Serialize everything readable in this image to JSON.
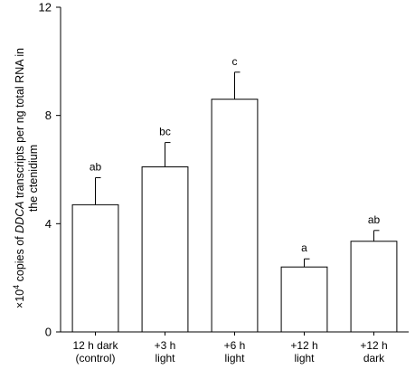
{
  "chart_data": {
    "type": "bar",
    "categories": [
      [
        "12 h dark",
        "(control)"
      ],
      [
        "+3 h",
        "light"
      ],
      [
        "+6 h",
        "light"
      ],
      [
        "+12 h",
        "light"
      ],
      [
        "+12 h",
        "dark"
      ]
    ],
    "values": [
      4.7,
      6.1,
      8.6,
      2.4,
      3.35
    ],
    "errors": [
      1.0,
      0.9,
      1.0,
      0.3,
      0.4
    ],
    "significance": [
      "ab",
      "bc",
      "c",
      "a",
      "ab"
    ],
    "ylim": [
      0,
      12
    ],
    "yticks": [
      0,
      4,
      8,
      12
    ],
    "ylabel": {
      "line1_prefix": "×10",
      "line1_sup": "4",
      "line1_mid": " copies of ",
      "line1_italic": "DDCA",
      "line1_suffix": " transcripts per ng total RNA in",
      "line2": "the ctenidium"
    },
    "title": "",
    "xlabel": "",
    "bar_fill": "#ffffff",
    "bar_stroke": "#000000"
  }
}
